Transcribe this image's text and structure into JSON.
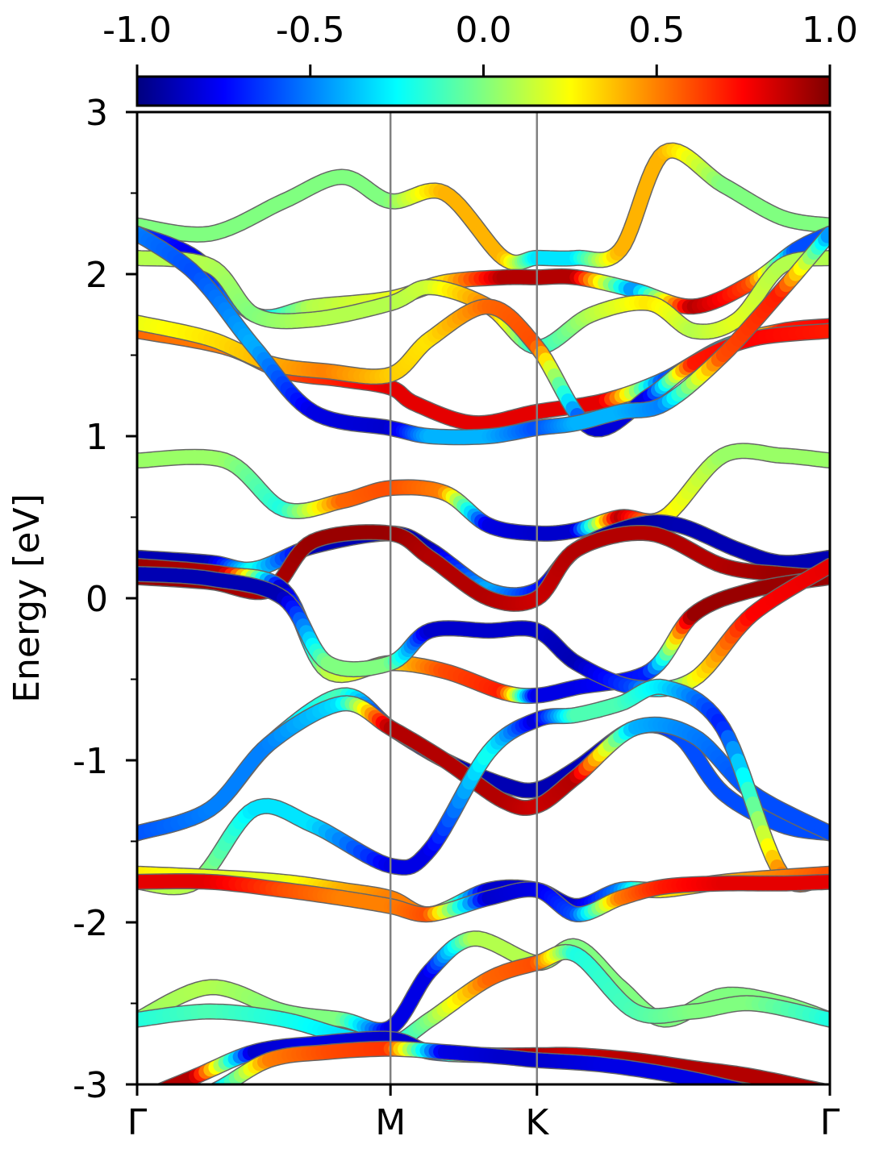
{
  "chart_data": {
    "type": "line",
    "title": "",
    "xlabel": "",
    "ylabel": "Energy [eV]",
    "ylim": [
      -3,
      3
    ],
    "yticks": [
      {
        "value": 3,
        "label": "3"
      },
      {
        "value": 2,
        "label": "2"
      },
      {
        "value": 1,
        "label": "1"
      },
      {
        "value": 0,
        "label": "0"
      },
      {
        "value": -1,
        "label": "-1"
      },
      {
        "value": -2,
        "label": "-2"
      },
      {
        "value": -3,
        "label": "-3"
      }
    ],
    "xlim": [
      0,
      4.73
    ],
    "kpoints": [
      {
        "label": "Γ",
        "x": 0
      },
      {
        "label": "M",
        "x": 1.73
      },
      {
        "label": "K",
        "x": 2.73
      },
      {
        "label": "Γ",
        "x": 4.73
      }
    ],
    "colorbar": {
      "colormap": "jet",
      "range": [
        -1.0,
        1.0
      ],
      "ticks": [
        {
          "value": -1.0,
          "label": "-1.0"
        },
        {
          "value": -0.5,
          "label": "-0.5"
        },
        {
          "value": 0.0,
          "label": "0.0"
        },
        {
          "value": 0.5,
          "label": "0.5"
        },
        {
          "value": 1.0,
          "label": "1.0"
        }
      ]
    },
    "bands": [
      {
        "x": [
          0,
          0.5,
          1.0,
          1.4,
          1.73,
          2.1,
          2.5,
          2.73,
          3.0,
          3.3,
          3.6,
          4.0,
          4.4,
          4.73
        ],
        "y": [
          2.3,
          2.25,
          2.45,
          2.6,
          2.45,
          2.5,
          2.1,
          2.1,
          2.1,
          2.15,
          2.75,
          2.55,
          2.35,
          2.3
        ],
        "c": [
          0,
          0,
          0,
          0,
          0,
          0.4,
          0.4,
          -0.3,
          -0.3,
          0.4,
          0.4,
          0,
          0,
          0
        ]
      },
      {
        "x": [
          0,
          0.4,
          0.8,
          1.2,
          1.73,
          2.1,
          2.5,
          2.73,
          3.0,
          3.4,
          3.8,
          4.2,
          4.5,
          4.73
        ],
        "y": [
          2.25,
          2.1,
          1.75,
          1.8,
          1.85,
          1.95,
          1.98,
          1.98,
          1.98,
          1.9,
          1.8,
          1.95,
          2.15,
          2.25
        ],
        "c": [
          -0.6,
          -0.8,
          -0.4,
          0.1,
          0.2,
          0.3,
          0.9,
          0.9,
          0.9,
          -0.5,
          0.9,
          0.6,
          -0.6,
          -0.6
        ]
      },
      {
        "x": [
          0,
          0.5,
          0.8,
          1.2,
          1.73,
          2.0,
          2.4,
          2.73,
          3.1,
          3.5,
          3.8,
          4.1,
          4.4,
          4.73
        ],
        "y": [
          2.1,
          2.05,
          1.75,
          1.72,
          1.82,
          1.92,
          1.8,
          1.55,
          1.75,
          1.82,
          1.65,
          1.72,
          2.05,
          2.1
        ],
        "c": [
          0.1,
          0.1,
          0,
          0.1,
          0.1,
          0.15,
          0.5,
          -0.2,
          0.1,
          0.3,
          0.1,
          0.2,
          0.1,
          0.1
        ]
      },
      {
        "x": [
          0,
          0.6,
          1.0,
          1.4,
          1.73,
          1.9,
          2.3,
          2.73,
          3.2,
          3.6,
          4.0,
          4.4,
          4.73
        ],
        "y": [
          1.65,
          1.55,
          1.4,
          1.35,
          1.3,
          1.2,
          1.08,
          1.15,
          1.22,
          1.35,
          1.55,
          1.65,
          1.68
        ],
        "c": [
          0.55,
          0.5,
          0.6,
          0.7,
          0.8,
          0.8,
          0.8,
          0.8,
          0.8,
          -0.6,
          -0.4,
          0.7,
          0.75
        ]
      },
      {
        "x": [
          0,
          0.5,
          0.9,
          1.3,
          1.73,
          2.0,
          2.4,
          2.73,
          3.1,
          3.5,
          3.8,
          4.2,
          4.73
        ],
        "y": [
          1.7,
          1.6,
          1.45,
          1.4,
          1.38,
          1.6,
          1.8,
          1.55,
          1.05,
          1.25,
          1.45,
          1.6,
          1.65
        ],
        "c": [
          0.2,
          0.3,
          0.4,
          0.5,
          0.35,
          0.3,
          0.55,
          0.6,
          -0.85,
          -0.8,
          0.7,
          0.75,
          0.7
        ]
      },
      {
        "x": [
          0,
          0.4,
          0.8,
          1.2,
          1.73,
          2.0,
          2.4,
          2.73,
          3.0,
          3.3,
          3.6,
          4.0,
          4.4,
          4.73
        ],
        "y": [
          2.25,
          2.0,
          1.55,
          1.15,
          1.05,
          1.0,
          1.0,
          1.05,
          1.08,
          1.15,
          1.2,
          1.5,
          1.9,
          2.25
        ],
        "c": [
          -0.5,
          -0.6,
          -0.4,
          -0.8,
          -0.85,
          -0.4,
          -0.4,
          -0.6,
          -0.4,
          -0.4,
          -0.5,
          0.6,
          0.7,
          -0.5
        ]
      },
      {
        "x": [
          0,
          0.6,
          1.0,
          1.4,
          1.73,
          2.1,
          2.4,
          2.73,
          3.0,
          3.3,
          3.6,
          4.0,
          4.4,
          4.73
        ],
        "y": [
          0.85,
          0.85,
          0.55,
          0.6,
          0.68,
          0.65,
          0.45,
          0.4,
          0.42,
          0.5,
          0.5,
          0.88,
          0.88,
          0.85
        ],
        "c": [
          0.05,
          0.05,
          -0.2,
          0.55,
          0.6,
          0.5,
          -0.8,
          -0.85,
          -0.85,
          0.9,
          0.3,
          0.05,
          0.05,
          0.05
        ]
      },
      {
        "x": [
          0,
          0.5,
          0.8,
          1.2,
          1.73,
          2.0,
          2.4,
          2.73,
          3.0,
          3.4,
          3.7,
          4.1,
          4.4,
          4.73
        ],
        "y": [
          0.25,
          0.22,
          0.18,
          0.32,
          0.4,
          0.3,
          0.05,
          0.05,
          0.3,
          0.45,
          0.45,
          0.3,
          0.22,
          0.25
        ],
        "c": [
          -0.9,
          -0.9,
          -0.2,
          -0.9,
          -0.9,
          -0.9,
          -0.4,
          -0.7,
          -0.9,
          -0.95,
          -0.9,
          -0.9,
          -0.9,
          -0.9
        ]
      },
      {
        "x": [
          0,
          0.5,
          0.9,
          1.2,
          1.73,
          2.0,
          2.4,
          2.73,
          3.0,
          3.5,
          4.0,
          4.4,
          4.73
        ],
        "y": [
          0.13,
          0.1,
          0.05,
          0.35,
          0.4,
          0.25,
          0.0,
          0.0,
          0.3,
          0.4,
          0.2,
          0.15,
          0.13
        ],
        "c": [
          0.95,
          0.95,
          0.9,
          0.95,
          0.95,
          0.9,
          0.9,
          0.85,
          0.9,
          0.9,
          0.9,
          0.95,
          0.95
        ]
      },
      {
        "x": [
          0,
          0.6,
          1.0,
          1.3,
          1.73,
          2.1,
          2.5,
          2.73,
          3.0,
          3.5,
          3.8,
          4.2,
          4.73
        ],
        "y": [
          0.2,
          0.15,
          0.05,
          -0.45,
          -0.4,
          -0.45,
          -0.58,
          -0.6,
          -0.55,
          -0.45,
          -0.1,
          0.05,
          0.13
        ],
        "c": [
          0.95,
          0.9,
          -0.9,
          0.1,
          0.3,
          0.6,
          0.7,
          -0.8,
          -0.8,
          -0.7,
          0.95,
          0.95,
          0.95
        ]
      },
      {
        "x": [
          0,
          0.5,
          1.0,
          1.3,
          1.73,
          2.0,
          2.4,
          2.73,
          3.0,
          3.4,
          3.8,
          4.2,
          4.73
        ],
        "y": [
          0.15,
          0.12,
          0.0,
          -0.4,
          -0.4,
          -0.2,
          -0.2,
          -0.2,
          -0.4,
          -0.55,
          -0.5,
          -0.1,
          0.2
        ],
        "c": [
          -0.9,
          -0.9,
          -0.9,
          0.0,
          0.0,
          -0.85,
          -0.85,
          -0.85,
          -0.9,
          -0.6,
          0.2,
          0.75,
          0.8
        ]
      },
      {
        "x": [
          0,
          0.5,
          0.9,
          1.4,
          1.73,
          2.1,
          2.5,
          2.73,
          3.0,
          3.4,
          3.7,
          4.0,
          4.4,
          4.73
        ],
        "y": [
          -1.45,
          -1.3,
          -0.9,
          -0.6,
          -0.8,
          -1.0,
          -1.15,
          -1.18,
          -1.05,
          -0.8,
          -0.85,
          -1.2,
          -1.4,
          -1.45
        ],
        "c": [
          -0.6,
          -0.4,
          -0.4,
          -0.1,
          -0.85,
          -0.9,
          -0.9,
          -0.9,
          -0.9,
          -0.8,
          -0.6,
          -0.6,
          -0.6,
          -0.6
        ]
      },
      {
        "x": [
          0,
          0.5,
          0.9,
          1.4,
          1.73,
          2.1,
          2.5,
          2.73,
          3.0,
          3.4,
          3.8,
          4.2,
          4.73
        ],
        "y": [
          -1.45,
          -1.3,
          -0.9,
          -0.65,
          -0.8,
          -1.0,
          -1.25,
          -1.28,
          -1.1,
          -0.8,
          -0.85,
          -1.2,
          -1.45
        ],
        "c": [
          -0.6,
          -0.5,
          -0.5,
          -0.3,
          0.9,
          0.9,
          0.9,
          0.85,
          0.9,
          -0.4,
          -0.5,
          -0.6,
          -0.6
        ]
      },
      {
        "x": [
          0,
          0.4,
          0.8,
          1.2,
          1.73,
          2.0,
          2.4,
          2.73,
          3.0,
          3.3,
          3.6,
          4.0,
          4.4,
          4.73
        ],
        "y": [
          -1.75,
          -1.75,
          -1.3,
          -1.4,
          -1.65,
          -1.55,
          -0.95,
          -0.75,
          -0.72,
          -0.65,
          -0.55,
          -0.8,
          -1.7,
          -1.7
        ],
        "c": [
          0.1,
          0.1,
          -0.3,
          -0.3,
          -0.8,
          -0.8,
          -0.2,
          -0.85,
          -0.1,
          -0.1,
          -0.3,
          -0.7,
          0.5,
          0.6
        ]
      },
      {
        "x": [
          0,
          0.5,
          1.0,
          1.4,
          1.73,
          2.0,
          2.4,
          2.73,
          3.0,
          3.3,
          3.6,
          4.0,
          4.4,
          4.73
        ],
        "y": [
          -1.7,
          -1.72,
          -1.75,
          -1.8,
          -1.85,
          -1.95,
          -1.8,
          -1.8,
          -1.9,
          -1.8,
          -1.8,
          -1.75,
          -1.72,
          -1.7
        ],
        "c": [
          0.3,
          0.2,
          0.2,
          0.4,
          0.5,
          0.5,
          -0.85,
          -0.85,
          -0.85,
          -0.5,
          0.3,
          0.4,
          0.5,
          0.6
        ]
      },
      {
        "x": [
          0,
          0.5,
          1.0,
          1.4,
          1.73,
          2.0,
          2.4,
          2.73,
          3.0,
          3.3,
          3.6,
          4.0,
          4.4,
          4.73
        ],
        "y": [
          -1.75,
          -1.75,
          -1.8,
          -1.85,
          -1.9,
          -1.95,
          -1.85,
          -1.8,
          -1.95,
          -1.85,
          -1.78,
          -1.76,
          -1.76,
          -1.75
        ],
        "c": [
          0.8,
          0.8,
          0.6,
          0.5,
          0.5,
          0.6,
          -0.85,
          -0.8,
          -0.6,
          0.5,
          0.7,
          0.8,
          0.8,
          0.8
        ]
      },
      {
        "x": [
          0,
          0.5,
          1.0,
          1.4,
          1.73,
          2.0,
          2.3,
          2.73,
          3.0,
          3.3,
          3.6,
          4.0,
          4.4,
          4.73
        ],
        "y": [
          -2.6,
          -2.4,
          -2.55,
          -2.6,
          -2.65,
          -2.3,
          -2.1,
          -2.25,
          -2.15,
          -2.4,
          -2.6,
          -2.45,
          -2.5,
          -2.6
        ],
        "c": [
          0.05,
          0.1,
          0.0,
          0.0,
          -0.8,
          -0.8,
          0.1,
          0.1,
          0.0,
          0.0,
          0.0,
          0.0,
          0.0,
          0.0
        ]
      },
      {
        "x": [
          0,
          0.5,
          1.0,
          1.4,
          1.73,
          2.0,
          2.4,
          2.73,
          3.0,
          3.4,
          3.8,
          4.2,
          4.73
        ],
        "y": [
          -2.6,
          -2.55,
          -2.6,
          -2.7,
          -2.75,
          -2.6,
          -2.35,
          -2.25,
          -2.2,
          -2.55,
          -2.55,
          -2.5,
          -2.6
        ],
        "c": [
          -0.2,
          -0.1,
          -0.2,
          -0.3,
          -0.3,
          0.0,
          0.55,
          0.6,
          -0.2,
          -0.1,
          0.0,
          0.0,
          -0.2
        ]
      },
      {
        "x": [
          0,
          0.4,
          0.8,
          1.2,
          1.73,
          2.0,
          2.4,
          2.73,
          3.0,
          3.4,
          3.8,
          4.2,
          4.73
        ],
        "y": [
          -3.1,
          -2.95,
          -2.8,
          -2.75,
          -2.72,
          -2.8,
          -2.82,
          -2.82,
          -2.82,
          -2.85,
          -2.9,
          -2.95,
          -3.05
        ],
        "c": [
          0.9,
          0.9,
          -0.85,
          -0.8,
          -0.85,
          -0.85,
          0.85,
          0.9,
          0.85,
          0.9,
          0.9,
          0.9,
          0.9
        ]
      },
      {
        "x": [
          0,
          0.5,
          0.9,
          1.3,
          1.73,
          2.1,
          2.5,
          2.73,
          3.2,
          3.7,
          4.2,
          4.73
        ],
        "y": [
          -3.2,
          -3.05,
          -2.85,
          -2.8,
          -2.78,
          -2.8,
          -2.83,
          -2.85,
          -2.88,
          -2.95,
          -3.05,
          -3.15
        ],
        "c": [
          -0.5,
          -0.5,
          0.5,
          0.6,
          0.65,
          -0.8,
          -0.85,
          -0.85,
          -0.8,
          -0.8,
          -0.8,
          -0.8
        ]
      }
    ]
  }
}
